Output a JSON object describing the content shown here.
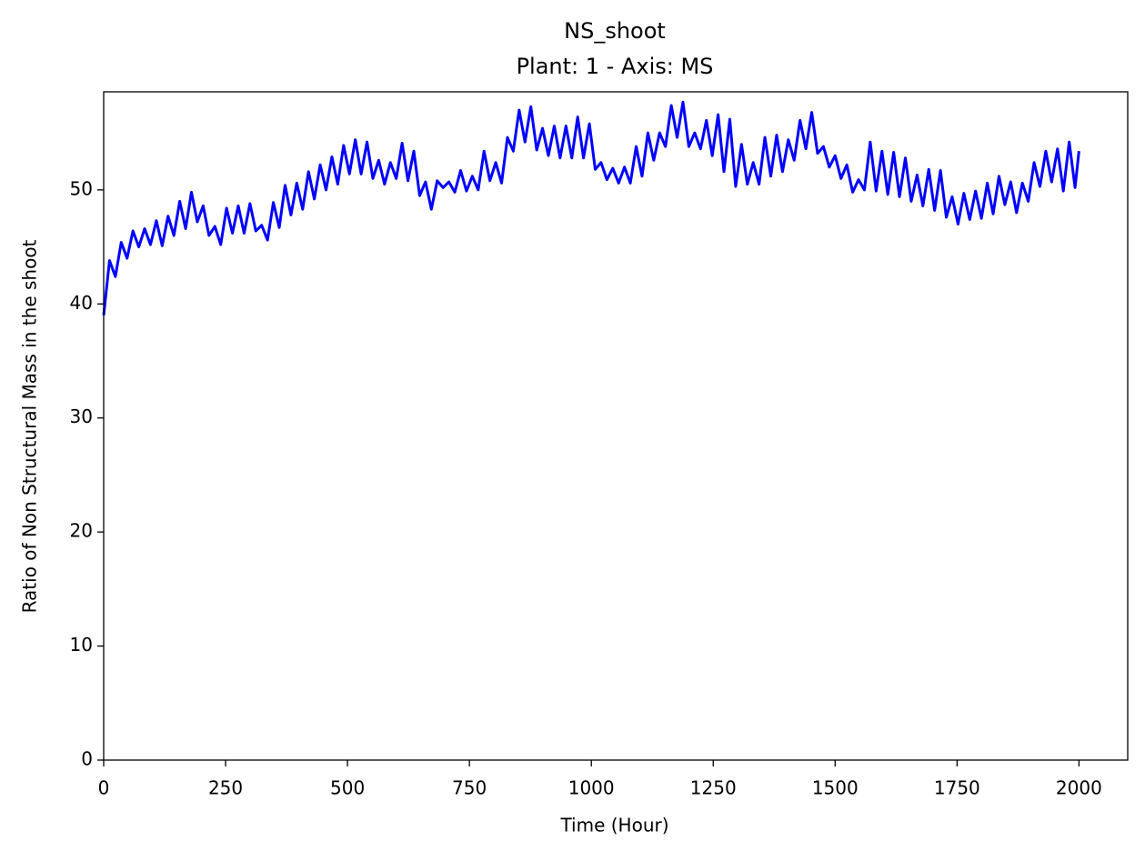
{
  "chart_data": {
    "type": "line",
    "title": "NS_shoot",
    "subtitle": "Plant: 1 - Axis: MS",
    "x_label": "Time (Hour)",
    "y_label": "Ratio of Non Structural Mass in the shoot",
    "color": "#0000ff",
    "x": [
      0,
      12,
      24,
      36,
      48,
      60,
      72,
      84,
      96,
      108,
      120,
      132,
      144,
      156,
      168,
      180,
      192,
      204,
      216,
      228,
      240,
      252,
      264,
      276,
      288,
      300,
      312,
      324,
      336,
      348,
      360,
      372,
      384,
      396,
      408,
      420,
      432,
      444,
      456,
      468,
      480,
      492,
      504,
      516,
      528,
      540,
      552,
      564,
      576,
      588,
      600,
      612,
      624,
      636,
      648,
      660,
      672,
      684,
      696,
      708,
      720,
      732,
      744,
      756,
      768,
      780,
      792,
      804,
      816,
      828,
      840,
      852,
      864,
      876,
      888,
      900,
      912,
      924,
      936,
      948,
      960,
      972,
      984,
      996,
      1008,
      1020,
      1032,
      1044,
      1056,
      1068,
      1080,
      1092,
      1104,
      1116,
      1128,
      1140,
      1152,
      1164,
      1176,
      1188,
      1200,
      1212,
      1224,
      1236,
      1248,
      1260,
      1272,
      1284,
      1296,
      1308,
      1320,
      1332,
      1344,
      1356,
      1368,
      1380,
      1392,
      1404,
      1416,
      1428,
      1440,
      1452,
      1464,
      1476,
      1488,
      1500,
      1512,
      1524,
      1536,
      1548,
      1560,
      1572,
      1584,
      1596,
      1608,
      1620,
      1632,
      1644,
      1656,
      1668,
      1680,
      1692,
      1704,
      1716,
      1728,
      1740,
      1752,
      1764,
      1776,
      1788,
      1800,
      1812,
      1824,
      1836,
      1848,
      1860,
      1872,
      1884,
      1896,
      1908,
      1920,
      1932,
      1944,
      1956,
      1968,
      1980,
      1992,
      2000
    ],
    "values": [
      39.0,
      43.8,
      42.4,
      45.4,
      44.0,
      46.4,
      45.0,
      46.6,
      45.2,
      47.3,
      45.1,
      47.7,
      46.0,
      49.0,
      46.6,
      49.8,
      47.2,
      48.6,
      46.0,
      46.8,
      45.2,
      48.4,
      46.2,
      48.6,
      46.2,
      48.8,
      46.4,
      46.9,
      45.6,
      48.9,
      46.7,
      50.4,
      47.8,
      50.6,
      48.3,
      51.6,
      49.2,
      52.2,
      50.0,
      52.9,
      50.5,
      53.9,
      51.4,
      54.4,
      51.4,
      54.2,
      51.0,
      52.6,
      50.5,
      52.4,
      51.0,
      54.1,
      50.8,
      53.4,
      49.5,
      50.7,
      48.3,
      50.8,
      50.2,
      50.7,
      49.8,
      51.7,
      49.9,
      51.2,
      50.0,
      53.4,
      50.8,
      52.4,
      50.6,
      54.6,
      53.4,
      57.0,
      54.2,
      57.3,
      53.5,
      55.4,
      53.0,
      55.6,
      52.8,
      55.6,
      52.8,
      56.4,
      52.8,
      55.8,
      51.8,
      52.4,
      50.9,
      51.9,
      50.6,
      52.0,
      50.6,
      53.8,
      51.2,
      55.0,
      52.6,
      55.0,
      53.8,
      57.4,
      54.6,
      57.7,
      53.8,
      55.0,
      53.6,
      56.1,
      53.0,
      56.6,
      51.6,
      56.2,
      50.3,
      54.0,
      50.5,
      52.4,
      50.5,
      54.6,
      51.2,
      54.8,
      51.6,
      54.4,
      52.6,
      56.1,
      53.6,
      56.8,
      53.2,
      53.8,
      52.0,
      53.0,
      51.0,
      52.2,
      49.8,
      50.9,
      50.0,
      54.2,
      49.9,
      53.4,
      49.6,
      53.3,
      49.4,
      52.8,
      49.0,
      51.3,
      48.6,
      51.8,
      48.2,
      51.7,
      47.6,
      49.4,
      47.0,
      49.7,
      47.4,
      49.9,
      47.5,
      50.6,
      47.9,
      51.2,
      48.7,
      50.7,
      48.0,
      50.6,
      49.0,
      52.4,
      50.3,
      53.4,
      50.7,
      53.6,
      49.9,
      54.2,
      50.2,
      53.4
    ],
    "xlim": [
      0,
      2100
    ],
    "ylim": [
      0,
      58.6
    ],
    "xticks": [
      0,
      250,
      500,
      750,
      1000,
      1250,
      1500,
      1750,
      2000
    ],
    "yticks": [
      0,
      10,
      20,
      30,
      40,
      50
    ],
    "grid": false
  }
}
